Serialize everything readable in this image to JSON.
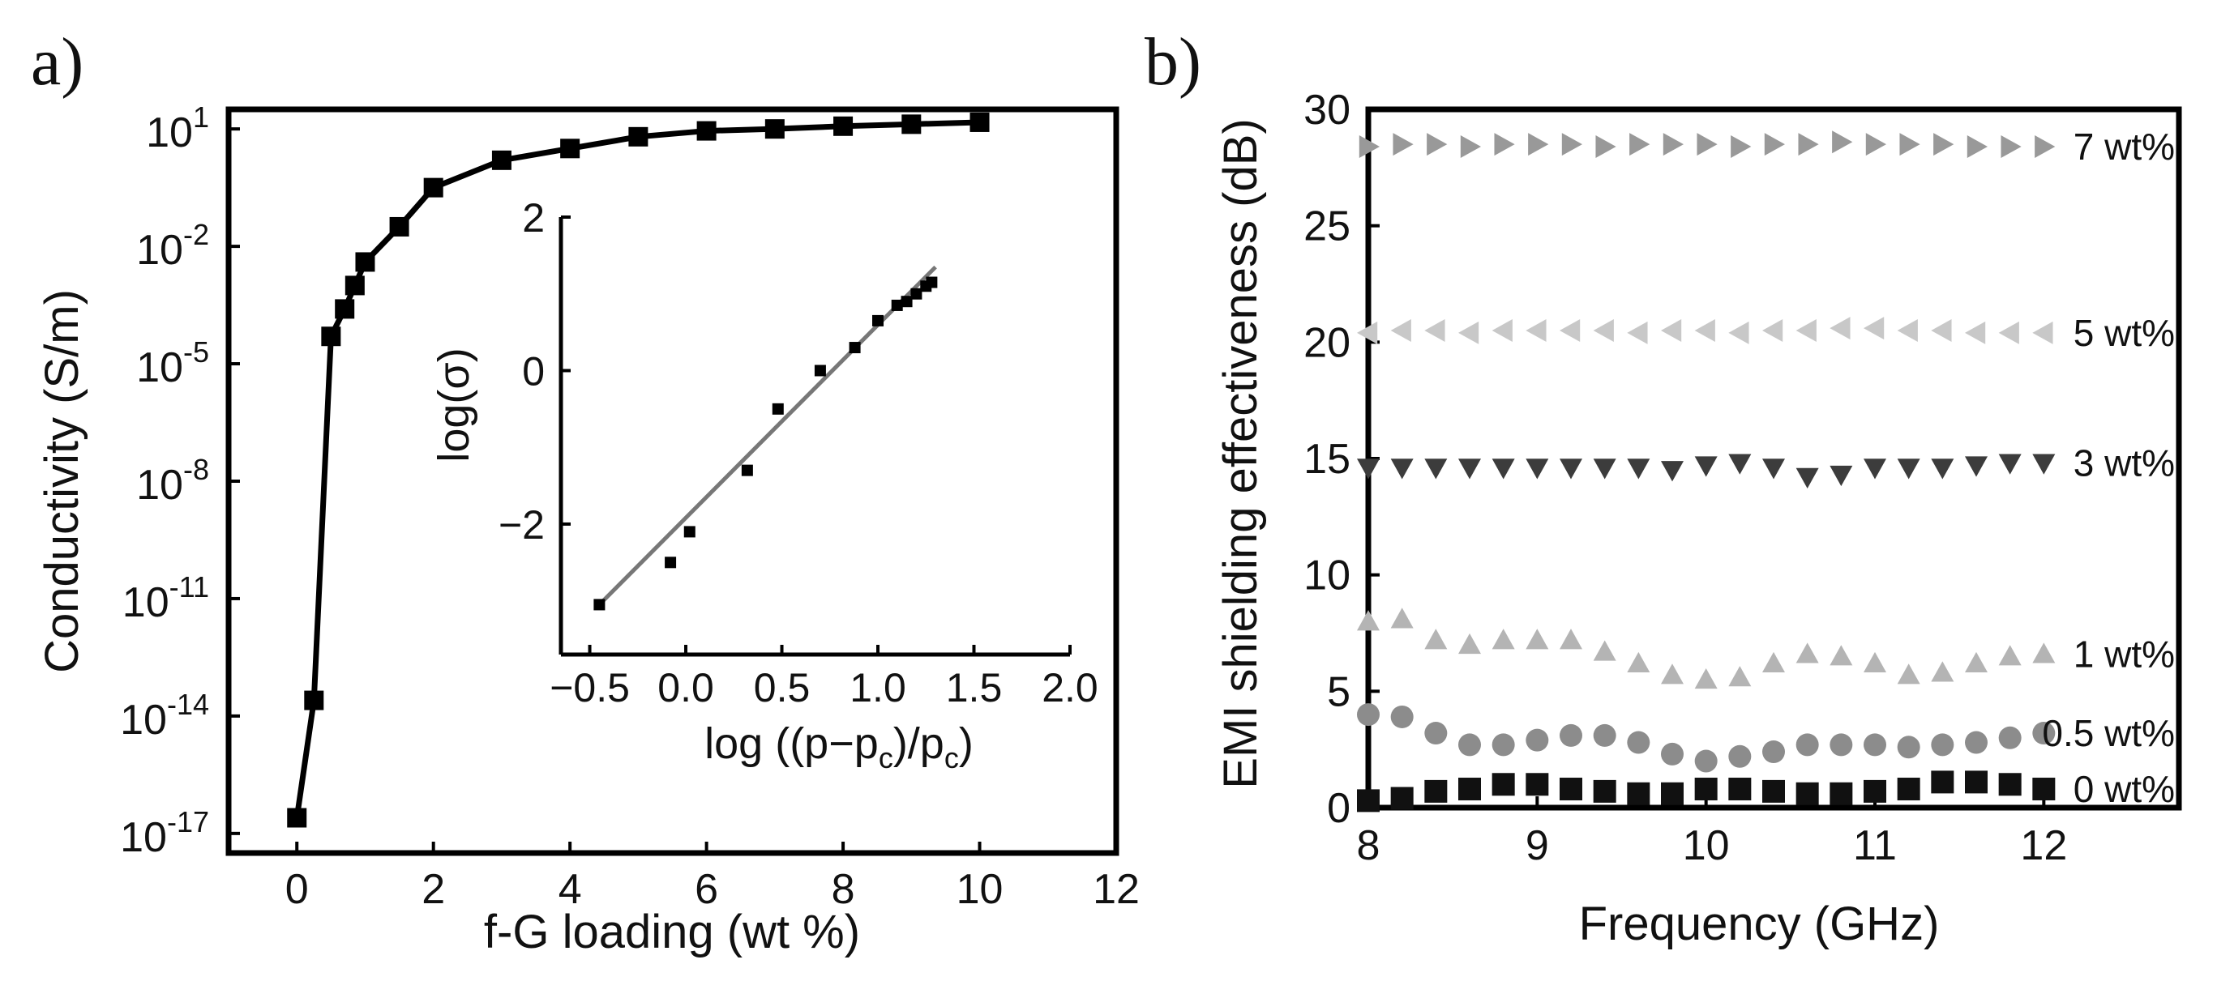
{
  "figure": {
    "panel_labels": [
      "a)",
      "b)"
    ]
  },
  "chart_data": [
    {
      "type": "line",
      "panel": "a)",
      "xlabel": "f-G loading (wt %)",
      "ylabel": "Conductivity (S/m)",
      "xlim": [
        -1,
        12
      ],
      "ylim_log10": [
        -17.5,
        1.5
      ],
      "y_scale": "log",
      "xticks": [
        0,
        2,
        4,
        6,
        8,
        10,
        12
      ],
      "xtick_labels": [
        "0",
        "2",
        "4",
        "6",
        "8",
        "10",
        "12"
      ],
      "yticks_exp": [
        1,
        -2,
        -5,
        -8,
        -11,
        -14,
        -17
      ],
      "ytick_labels": [
        {
          "base": "10",
          "exp": "1"
        },
        {
          "base": "10",
          "exp": "-2"
        },
        {
          "base": "10",
          "exp": "-5"
        },
        {
          "base": "10",
          "exp": "-8"
        },
        {
          "base": "10",
          "exp": "-11"
        },
        {
          "base": "10",
          "exp": "-14"
        },
        {
          "base": "10",
          "exp": "-17"
        }
      ],
      "series": [
        {
          "name": "conductivity",
          "marker": "square",
          "color": "#000000",
          "x": [
            0,
            0.25,
            0.5,
            0.7,
            0.85,
            1.0,
            1.5,
            2.0,
            3.0,
            4.0,
            5.0,
            6.0,
            7.0,
            8.0,
            9.0,
            10.0
          ],
          "log10_y": [
            -16.6,
            -13.6,
            -4.3,
            -3.6,
            -3.0,
            -2.4,
            -1.5,
            -0.5,
            0.2,
            0.5,
            0.8,
            0.95,
            1.0,
            1.07,
            1.12,
            1.17
          ]
        }
      ],
      "inset": {
        "type": "scatter",
        "xlabel": {
          "prefix": "log ((p",
          "minus": "−",
          "sym": "p",
          "sub": "c",
          "mid": ")/p",
          "sub2": "c",
          "suffix": ")"
        },
        "ylabel": "log(σ)",
        "xlim": [
          -0.65,
          2.0
        ],
        "ylim": [
          -3.7,
          2.0
        ],
        "xticks": [
          -0.5,
          0.0,
          0.5,
          1.0,
          1.5,
          2.0
        ],
        "xtick_labels": [
          "−0.5",
          "0.0",
          "0.5",
          "1.0",
          "1.5",
          "2.0"
        ],
        "yticks": [
          2,
          0,
          -2
        ],
        "ytick_labels": [
          "2",
          "0",
          "−2"
        ],
        "points": {
          "x": [
            -0.45,
            -0.08,
            0.02,
            0.32,
            0.48,
            0.7,
            0.88,
            1.0,
            1.1,
            1.15,
            1.2,
            1.25,
            1.28
          ],
          "y": [
            -3.05,
            -2.5,
            -2.1,
            -1.3,
            -0.5,
            0.0,
            0.3,
            0.65,
            0.85,
            0.9,
            1.0,
            1.1,
            1.15
          ]
        },
        "fit_line": {
          "x": [
            -0.45,
            1.3
          ],
          "y": [
            -3.05,
            1.35
          ],
          "color": "#777777"
        }
      }
    },
    {
      "type": "scatter",
      "panel": "b)",
      "xlabel": "Frequency (GHz)",
      "ylabel": "EMI shielding effectiveness (dB)",
      "xlim": [
        8,
        12.8
      ],
      "ylim": [
        0,
        30
      ],
      "xticks": [
        8,
        9,
        10,
        11,
        12
      ],
      "xtick_labels": [
        "8",
        "9",
        "10",
        "11",
        "12"
      ],
      "yticks": [
        0,
        5,
        10,
        15,
        20,
        25,
        30
      ],
      "ytick_labels": [
        "0",
        "5",
        "10",
        "15",
        "20",
        "25",
        "30"
      ],
      "x": [
        8.0,
        8.2,
        8.4,
        8.6,
        8.8,
        9.0,
        9.2,
        9.4,
        9.6,
        9.8,
        10.0,
        10.2,
        10.4,
        10.6,
        10.8,
        11.0,
        11.2,
        11.4,
        11.6,
        11.8,
        12.0
      ],
      "series": [
        {
          "name": "7 wt%",
          "marker": "triangle-right",
          "color": "#999999",
          "values": [
            28.4,
            28.5,
            28.5,
            28.4,
            28.5,
            28.5,
            28.5,
            28.4,
            28.5,
            28.5,
            28.5,
            28.4,
            28.5,
            28.5,
            28.6,
            28.5,
            28.5,
            28.5,
            28.4,
            28.4,
            28.4
          ]
        },
        {
          "name": "5 wt%",
          "marker": "triangle-left",
          "color": "#c8c8c8",
          "values": [
            20.4,
            20.5,
            20.5,
            20.4,
            20.5,
            20.5,
            20.5,
            20.5,
            20.4,
            20.5,
            20.5,
            20.4,
            20.5,
            20.5,
            20.6,
            20.6,
            20.5,
            20.5,
            20.4,
            20.4,
            20.4
          ]
        },
        {
          "name": "3 wt%",
          "marker": "triangle-down",
          "color": "#3c3c3c",
          "values": [
            14.6,
            14.6,
            14.6,
            14.6,
            14.6,
            14.6,
            14.6,
            14.6,
            14.6,
            14.5,
            14.7,
            14.8,
            14.6,
            14.2,
            14.3,
            14.6,
            14.6,
            14.6,
            14.7,
            14.8,
            14.8
          ]
        },
        {
          "name": "1 wt%",
          "marker": "triangle-up",
          "color": "#b4b4b4",
          "values": [
            8.0,
            8.1,
            7.2,
            7.0,
            7.2,
            7.2,
            7.2,
            6.7,
            6.2,
            5.7,
            5.5,
            5.6,
            6.2,
            6.6,
            6.5,
            6.2,
            5.7,
            5.8,
            6.2,
            6.5,
            6.6
          ]
        },
        {
          "name": "0.5 wt%",
          "marker": "circle",
          "color": "#8c8c8c",
          "values": [
            4.0,
            3.9,
            3.2,
            2.7,
            2.7,
            2.9,
            3.1,
            3.1,
            2.8,
            2.3,
            2.0,
            2.2,
            2.4,
            2.7,
            2.7,
            2.7,
            2.6,
            2.7,
            2.8,
            3.0,
            3.2
          ]
        },
        {
          "name": "0 wt%",
          "marker": "square",
          "color": "#111111",
          "values": [
            0.3,
            0.4,
            0.7,
            0.8,
            1.0,
            1.0,
            0.8,
            0.7,
            0.6,
            0.6,
            0.8,
            0.8,
            0.7,
            0.6,
            0.6,
            0.7,
            0.8,
            1.1,
            1.1,
            1.0,
            0.8
          ]
        }
      ]
    }
  ]
}
